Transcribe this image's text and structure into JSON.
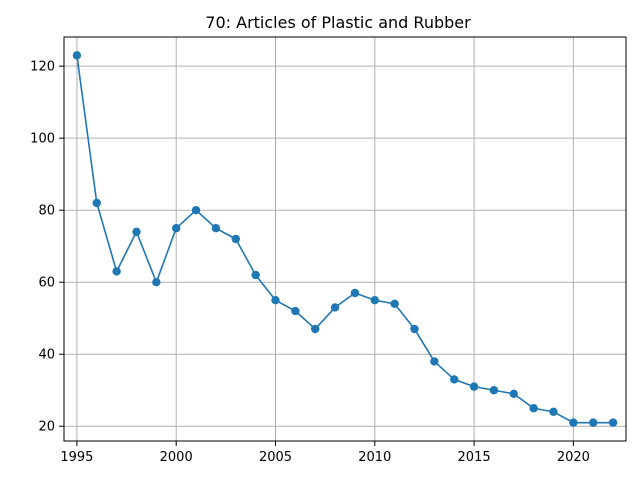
{
  "chart_data": {
    "type": "line",
    "title": "70: Articles of Plastic and Rubber",
    "xlabel": "",
    "ylabel": "",
    "x": [
      1995,
      1996,
      1997,
      1998,
      1999,
      2000,
      2001,
      2002,
      2003,
      2004,
      2005,
      2006,
      2007,
      2008,
      2009,
      2010,
      2011,
      2012,
      2013,
      2014,
      2015,
      2016,
      2017,
      2018,
      2019,
      2020,
      2021,
      2022
    ],
    "y": [
      123,
      82,
      63,
      74,
      60,
      75,
      80,
      75,
      72,
      62,
      55,
      52,
      47,
      53,
      57,
      55,
      54,
      47,
      38,
      33,
      31,
      30,
      29,
      25,
      24,
      21,
      21,
      21
    ],
    "xlim": [
      1994.35,
      2022.65
    ],
    "ylim": [
      15.9,
      128.1
    ],
    "x_ticks": [
      "1995",
      "2000",
      "2005",
      "2010",
      "2015",
      "2020"
    ],
    "y_ticks": [
      "20",
      "40",
      "60",
      "80",
      "100",
      "120"
    ],
    "grid": true,
    "legend": "none",
    "colors": {
      "line": "#1f77b4",
      "grid": "#b0b0b0",
      "axes": "#000000"
    }
  }
}
